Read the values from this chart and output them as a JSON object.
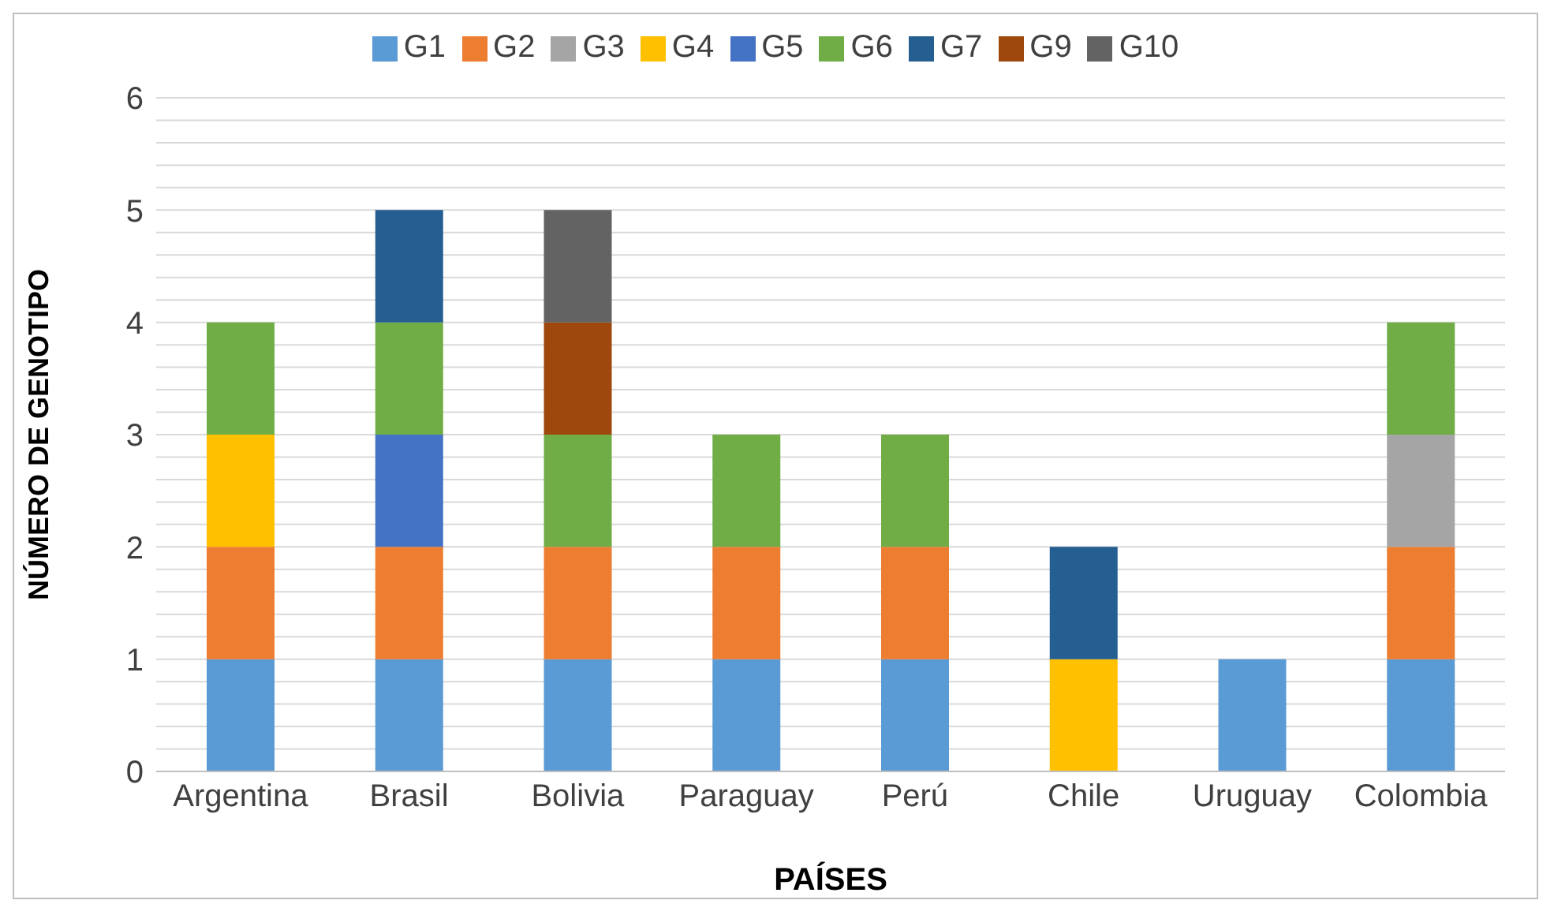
{
  "chart_data": {
    "type": "bar",
    "stacked": true,
    "xlabel": "PAÍSES",
    "ylabel": "NÚMERO DE GENOTIPO",
    "categories": [
      "Argentina",
      "Brasil",
      "Bolivia",
      "Paraguay",
      "Perú",
      "Chile",
      "Uruguay",
      "Colombia"
    ],
    "series": [
      {
        "name": "G1",
        "color": "#5b9bd5",
        "values": [
          1,
          1,
          1,
          1,
          1,
          null,
          1,
          1
        ]
      },
      {
        "name": "G2",
        "color": "#ed7d31",
        "values": [
          1,
          1,
          1,
          1,
          1,
          null,
          null,
          1
        ]
      },
      {
        "name": "G3",
        "color": "#a5a5a5",
        "values": [
          null,
          null,
          null,
          null,
          null,
          null,
          null,
          1
        ]
      },
      {
        "name": "G4",
        "color": "#ffc000",
        "values": [
          1,
          null,
          null,
          null,
          null,
          1,
          null,
          null
        ]
      },
      {
        "name": "G5",
        "color": "#4472c4",
        "values": [
          null,
          1,
          null,
          null,
          null,
          null,
          null,
          null
        ]
      },
      {
        "name": "G6",
        "color": "#70ad47",
        "values": [
          1,
          1,
          1,
          1,
          1,
          null,
          null,
          1
        ]
      },
      {
        "name": "G7",
        "color": "#255e91",
        "values": [
          null,
          1,
          null,
          null,
          null,
          1,
          null,
          null
        ]
      },
      {
        "name": "G9",
        "color": "#9e480e",
        "values": [
          null,
          null,
          1,
          null,
          null,
          null,
          null,
          null
        ]
      },
      {
        "name": "G10",
        "color": "#636363",
        "values": [
          null,
          null,
          1,
          null,
          null,
          null,
          null,
          null
        ]
      }
    ],
    "ylim": [
      0,
      6
    ],
    "yticks": [
      0,
      {
        "value": 0.2,
        "label": null
      },
      {
        "value": 0.4,
        "label": null
      },
      {
        "value": 0.6,
        "label": null
      },
      {
        "value": 0.8,
        "label": null
      },
      1,
      {
        "value": 1.2,
        "label": null
      },
      {
        "value": 1.4,
        "label": null
      },
      {
        "value": 1.6,
        "label": null
      },
      {
        "value": 1.8,
        "label": null
      },
      2,
      {
        "value": 2.2,
        "label": null
      },
      {
        "value": 2.4,
        "label": null
      },
      {
        "value": 2.6,
        "label": null
      },
      {
        "value": 2.8,
        "label": null
      },
      3,
      {
        "value": 3.2,
        "label": null
      },
      {
        "value": 3.4,
        "label": null
      },
      {
        "value": 3.6,
        "label": null
      },
      {
        "value": 3.8,
        "label": null
      },
      4,
      {
        "value": 4.2,
        "label": null
      },
      {
        "value": 4.4,
        "label": null
      },
      {
        "value": 4.6,
        "label": null
      },
      {
        "value": 4.8,
        "label": null
      },
      5,
      {
        "value": 5.2,
        "label": null
      },
      {
        "value": 5.4,
        "label": null
      },
      {
        "value": 5.6,
        "label": null
      },
      {
        "value": 5.8,
        "label": null
      },
      6
    ],
    "grid": "y",
    "legend": "top"
  }
}
